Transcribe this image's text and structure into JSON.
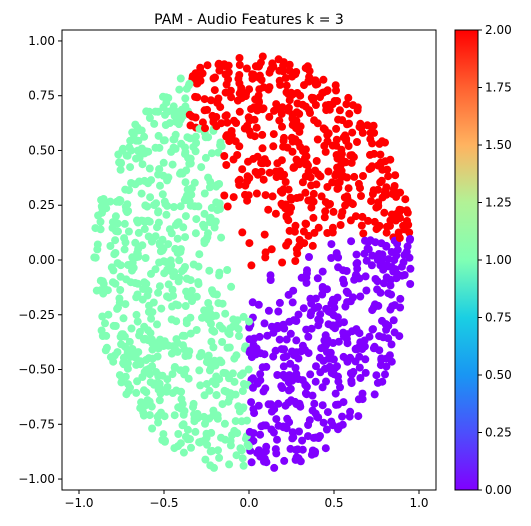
{
  "chart_data": {
    "type": "scatter",
    "title": "PAM - Audio Features k = 3",
    "xlabel": "",
    "ylabel": "",
    "xlim": [
      -1.1,
      1.1
    ],
    "ylim": [
      -1.05,
      1.05
    ],
    "x_ticks": [
      -1.0,
      -0.5,
      0.0,
      0.5,
      1.0
    ],
    "x_tick_labels": [
      "−1.0",
      "−0.5",
      "0.0",
      "0.5",
      "1.0"
    ],
    "y_ticks": [
      1.0,
      0.75,
      0.5,
      0.25,
      0.0,
      -0.25,
      -0.5,
      -0.75,
      -1.0
    ],
    "y_tick_labels": [
      "1.00",
      "0.75",
      "0.50",
      "0.25",
      "0.00",
      "−0.25",
      "−0.50",
      "−0.75",
      "−1.00"
    ],
    "grid": false,
    "legend": "none",
    "colormap": "rainbow",
    "colorbar": {
      "range": [
        0,
        2
      ],
      "ticks": [
        0.0,
        0.25,
        0.5,
        0.75,
        1.0,
        1.25,
        1.5,
        1.75,
        2.0
      ],
      "tick_labels": [
        "0.00",
        "0.25",
        "0.50",
        "0.75",
        "1.00",
        "1.25",
        "1.50",
        "1.75",
        "2.00"
      ]
    },
    "clusters": [
      {
        "value": 0,
        "color": "#8000ff",
        "region": "right-lower",
        "approx_count": 450
      },
      {
        "value": 1,
        "color": "#80ffb4",
        "region": "left",
        "approx_count": 650
      },
      {
        "value": 2,
        "color": "#ff0000",
        "region": "top",
        "approx_count": 500
      }
    ]
  }
}
